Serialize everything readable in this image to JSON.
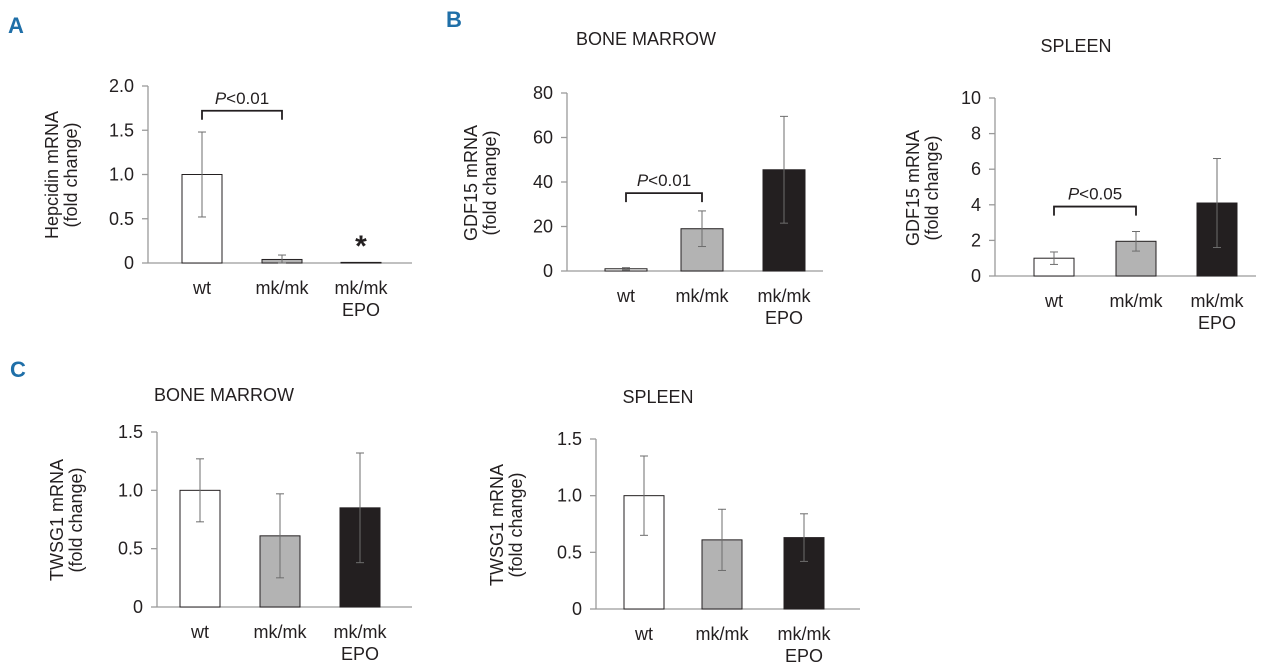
{
  "figure": {
    "panel_label_color": "#1f6fa8",
    "colors": {
      "wt": "#ffffff",
      "mk/mk": "#b3b3b3",
      "mk/mk EPO": "#231f20"
    }
  },
  "chart_data": [
    {
      "id": "A",
      "panel_label": "A",
      "type": "bar",
      "title": "",
      "ylabel": [
        "Hepcidin mRNA",
        "(fold change)"
      ],
      "ylim": [
        0,
        2.0
      ],
      "yticks": [
        {
          "v": 0,
          "label": "0"
        },
        {
          "v": 0.5,
          "label": "0.5"
        },
        {
          "v": 1.0,
          "label": "1.0"
        },
        {
          "v": 1.5,
          "label": "1.5"
        },
        {
          "v": 2.0,
          "label": "2.0"
        }
      ],
      "categories": [
        [
          "wt"
        ],
        [
          "mk/mk"
        ],
        [
          "mk/mk",
          "EPO"
        ]
      ],
      "values": [
        1.0,
        0.04,
        0.005
      ],
      "errors": [
        0.48,
        0.05,
        0.0
      ],
      "fills": [
        "#ffffff",
        "#b3b3b3",
        "#231f20"
      ],
      "brackets": [
        {
          "from": 0,
          "to": 1,
          "y": 1.72,
          "label_italic": "P",
          "label_rest": "<0.01"
        }
      ],
      "asterisks": [
        {
          "bar": 2,
          "y": 0.28,
          "text": "*"
        }
      ]
    },
    {
      "id": "B1",
      "panel_label": "B",
      "type": "bar",
      "title": "BONE MARROW",
      "ylabel": [
        "GDF15 mRNA",
        "(fold change)"
      ],
      "ylim": [
        0,
        80
      ],
      "yticks": [
        {
          "v": 0,
          "label": "0"
        },
        {
          "v": 20,
          "label": "20"
        },
        {
          "v": 40,
          "label": "40"
        },
        {
          "v": 60,
          "label": "60"
        },
        {
          "v": 80,
          "label": "80"
        }
      ],
      "categories": [
        [
          "wt"
        ],
        [
          "mk/mk"
        ],
        [
          "mk/mk",
          "EPO"
        ]
      ],
      "values": [
        1.0,
        19.0,
        45.5
      ],
      "errors": [
        0.5,
        8.0,
        24.0
      ],
      "fills": [
        "#ffffff",
        "#b3b3b3",
        "#231f20"
      ],
      "brackets": [
        {
          "from": 0,
          "to": 1,
          "y": 35,
          "label_italic": "P",
          "label_rest": "<0.01"
        }
      ],
      "asterisks": []
    },
    {
      "id": "B2",
      "panel_label": "",
      "type": "bar",
      "title": "SPLEEN",
      "ylabel": [
        "GDF15 mRNA",
        "(fold change)"
      ],
      "ylim": [
        0,
        10
      ],
      "yticks": [
        {
          "v": 0,
          "label": "0"
        },
        {
          "v": 2,
          "label": "2"
        },
        {
          "v": 4,
          "label": "4"
        },
        {
          "v": 6,
          "label": "6"
        },
        {
          "v": 8,
          "label": "8"
        },
        {
          "v": 10,
          "label": "10"
        }
      ],
      "categories": [
        [
          "wt"
        ],
        [
          "mk/mk"
        ],
        [
          "mk/mk",
          "EPO"
        ]
      ],
      "values": [
        1.0,
        1.95,
        4.1
      ],
      "errors": [
        0.35,
        0.55,
        2.5
      ],
      "fills": [
        "#ffffff",
        "#b3b3b3",
        "#231f20"
      ],
      "brackets": [
        {
          "from": 0,
          "to": 1,
          "y": 3.9,
          "label_italic": "P",
          "label_rest": "<0.05"
        }
      ],
      "asterisks": []
    },
    {
      "id": "C1",
      "panel_label": "C",
      "type": "bar",
      "title": "BONE MARROW",
      "ylabel": [
        "TWSG1 mRNA",
        "(fold change)"
      ],
      "ylim": [
        0,
        1.5
      ],
      "yticks": [
        {
          "v": 0,
          "label": "0"
        },
        {
          "v": 0.5,
          "label": "0.5"
        },
        {
          "v": 1.0,
          "label": "1.0"
        },
        {
          "v": 1.5,
          "label": "1.5"
        }
      ],
      "categories": [
        [
          "wt"
        ],
        [
          "mk/mk"
        ],
        [
          "mk/mk",
          "EPO"
        ]
      ],
      "values": [
        1.0,
        0.61,
        0.85
      ],
      "errors": [
        0.27,
        0.36,
        0.47
      ],
      "fills": [
        "#ffffff",
        "#b3b3b3",
        "#231f20"
      ],
      "brackets": [],
      "asterisks": []
    },
    {
      "id": "C2",
      "panel_label": "",
      "type": "bar",
      "title": "SPLEEN",
      "ylabel": [
        "TWSG1 mRNA",
        "(fold change)"
      ],
      "ylim": [
        0,
        1.5
      ],
      "yticks": [
        {
          "v": 0,
          "label": "0"
        },
        {
          "v": 0.5,
          "label": "0.5"
        },
        {
          "v": 1.0,
          "label": "1.0"
        },
        {
          "v": 1.5,
          "label": "1.5"
        }
      ],
      "categories": [
        [
          "wt"
        ],
        [
          "mk/mk"
        ],
        [
          "mk/mk",
          "EPO"
        ]
      ],
      "values": [
        1.0,
        0.61,
        0.63
      ],
      "errors": [
        0.35,
        0.27,
        0.21
      ],
      "fills": [
        "#ffffff",
        "#b3b3b3",
        "#231f20"
      ],
      "brackets": [],
      "asterisks": []
    }
  ]
}
